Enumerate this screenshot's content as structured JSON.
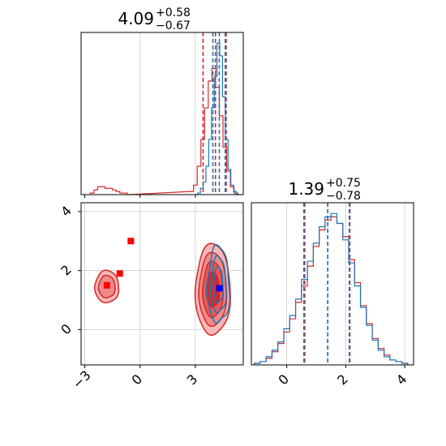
{
  "colors": {
    "red": "#d62728",
    "blue": "#1f77b4",
    "marker_blue": "#0000ff",
    "marker_red": "#ff0000",
    "grid": "#cccccc"
  },
  "chart_data": [
    {
      "type": "histogram",
      "panel": "top-left",
      "title": {
        "main": "4.09",
        "plus": "+0.58",
        "minus": "−0.67"
      },
      "xlim": [
        -3.2,
        5.6
      ],
      "xgrid": [
        0,
        3
      ],
      "series": [
        {
          "color": "red",
          "x": [
            -2.6,
            -2.4,
            -2.2,
            -2.0,
            -1.8,
            -1.6,
            -1.4,
            -1.2,
            -1.0,
            -0.8,
            -0.6,
            2.8,
            3.0,
            3.2,
            3.4,
            3.6,
            3.8,
            4.0,
            4.2,
            4.4,
            4.6,
            4.8,
            5.0,
            5.2
          ],
          "y": [
            0.01,
            0.03,
            0.05,
            0.05,
            0.04,
            0.04,
            0.03,
            0.02,
            0.01,
            0.01,
            0.0,
            0.02,
            0.06,
            0.18,
            0.35,
            0.55,
            0.72,
            0.8,
            0.68,
            0.5,
            0.3,
            0.15,
            0.05,
            0.01
          ],
          "quantile_lines": [
            3.42,
            4.09,
            4.67
          ]
        },
        {
          "color": "blue",
          "x": [
            3.2,
            3.35,
            3.5,
            3.65,
            3.8,
            3.95,
            4.1,
            4.25,
            4.4,
            4.55,
            4.7,
            4.85,
            5.0,
            5.15,
            5.3
          ],
          "y": [
            0.01,
            0.04,
            0.08,
            0.18,
            0.35,
            0.55,
            0.75,
            0.96,
            0.88,
            0.62,
            0.35,
            0.16,
            0.06,
            0.02,
            0.0
          ],
          "quantile_lines": [
            3.95,
            4.3,
            4.62
          ]
        }
      ]
    },
    {
      "type": "histogram",
      "panel": "bottom-right",
      "title": {
        "main": "1.39",
        "plus": "+0.75",
        "minus": "−0.78"
      },
      "xlim": [
        -1.2,
        4.3
      ],
      "xticks": [
        0,
        2,
        4
      ],
      "series": [
        {
          "color": "red",
          "x": [
            -1.0,
            -0.8,
            -0.6,
            -0.4,
            -0.2,
            0.0,
            0.2,
            0.4,
            0.6,
            0.8,
            1.0,
            1.2,
            1.4,
            1.6,
            1.8,
            2.0,
            2.2,
            2.4,
            2.6,
            2.8,
            3.0,
            3.2,
            3.4,
            3.6,
            3.8,
            4.0
          ],
          "y": [
            0.01,
            0.02,
            0.04,
            0.08,
            0.13,
            0.2,
            0.28,
            0.38,
            0.48,
            0.6,
            0.72,
            0.82,
            0.88,
            0.9,
            0.86,
            0.78,
            0.64,
            0.5,
            0.36,
            0.25,
            0.16,
            0.1,
            0.06,
            0.03,
            0.02,
            0.01
          ],
          "quantile_lines": [
            0.61,
            1.39,
            2.14
          ]
        },
        {
          "color": "blue",
          "x": [
            -1.0,
            -0.8,
            -0.6,
            -0.4,
            -0.2,
            0.0,
            0.2,
            0.4,
            0.6,
            0.8,
            1.0,
            1.2,
            1.4,
            1.6,
            1.8,
            2.0,
            2.2,
            2.4,
            2.6,
            2.8,
            3.0,
            3.2,
            3.4,
            3.6,
            3.8,
            4.0
          ],
          "y": [
            0.01,
            0.02,
            0.05,
            0.09,
            0.14,
            0.22,
            0.3,
            0.4,
            0.52,
            0.63,
            0.74,
            0.84,
            0.9,
            0.92,
            0.86,
            0.76,
            0.62,
            0.48,
            0.35,
            0.24,
            0.15,
            0.09,
            0.05,
            0.03,
            0.02,
            0.01
          ],
          "quantile_lines": [
            0.58,
            1.39,
            2.12
          ]
        }
      ]
    },
    {
      "type": "contour",
      "panel": "bottom-left",
      "xlim": [
        -3.2,
        5.6
      ],
      "ylim": [
        -1.2,
        4.3
      ],
      "xticks": [
        -3,
        0,
        3
      ],
      "yticks": [
        0,
        2,
        4
      ],
      "red_markers": [
        [
          -1.8,
          1.5
        ],
        [
          -1.1,
          1.9
        ],
        [
          -0.5,
          3.0
        ]
      ],
      "blue_marker": [
        4.3,
        1.4
      ]
    }
  ]
}
